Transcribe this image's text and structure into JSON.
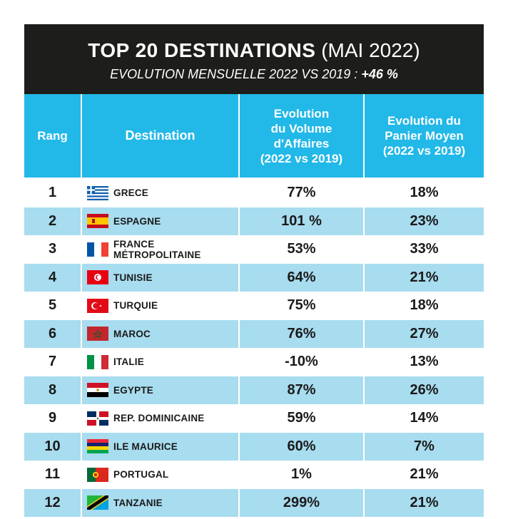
{
  "header": {
    "title_bold": "TOP 20 DESTINATIONS",
    "title_normal": "(MAI 2022)",
    "subtitle": "EVOLUTION MENSUELLE 2022 VS 2019 :",
    "subtitle_value": "+46 %"
  },
  "table": {
    "columns": {
      "rank": "Rang",
      "destination": "Destination",
      "volume": [
        "Evolution",
        "du Volume",
        "d'Affaires",
        "(2022 vs 2019)"
      ],
      "basket": [
        "Evolution du",
        "Panier Moyen",
        "(2022 vs 2019)"
      ]
    },
    "rows": [
      {
        "rank": "1",
        "flag": "greece-flag-icon",
        "destination": "GRECE",
        "volume": "77%",
        "basket": "18%"
      },
      {
        "rank": "2",
        "flag": "spain-flag-icon",
        "destination": "ESPAGNE",
        "volume": "101 %",
        "basket": "23%"
      },
      {
        "rank": "3",
        "flag": "france-flag-icon",
        "destination": "FRANCE MÉTROPOLITAINE",
        "volume": "53%",
        "basket": "33%"
      },
      {
        "rank": "4",
        "flag": "tunisia-flag-icon",
        "destination": "TUNISIE",
        "volume": "64%",
        "basket": "21%"
      },
      {
        "rank": "5",
        "flag": "turkey-flag-icon",
        "destination": "TURQUIE",
        "volume": "75%",
        "basket": "18%"
      },
      {
        "rank": "6",
        "flag": "morocco-flag-icon",
        "destination": "MAROC",
        "volume": "76%",
        "basket": "27%"
      },
      {
        "rank": "7",
        "flag": "italy-flag-icon",
        "destination": "ITALIE",
        "volume": "-10%",
        "basket": "13%"
      },
      {
        "rank": "8",
        "flag": "egypt-flag-icon",
        "destination": "EGYPTE",
        "volume": "87%",
        "basket": "26%"
      },
      {
        "rank": "9",
        "flag": "dominican-republic-flag-icon",
        "destination": "REP. DOMINICAINE",
        "volume": "59%",
        "basket": "14%"
      },
      {
        "rank": "10",
        "flag": "mauritius-flag-icon",
        "destination": "ILE MAURICE",
        "volume": "60%",
        "basket": "7%"
      },
      {
        "rank": "11",
        "flag": "portugal-flag-icon",
        "destination": "PORTUGAL",
        "volume": "1%",
        "basket": "21%"
      },
      {
        "rank": "12",
        "flag": "tanzania-flag-icon",
        "destination": "TANZANIE",
        "volume": "299%",
        "basket": "21%"
      }
    ]
  }
}
